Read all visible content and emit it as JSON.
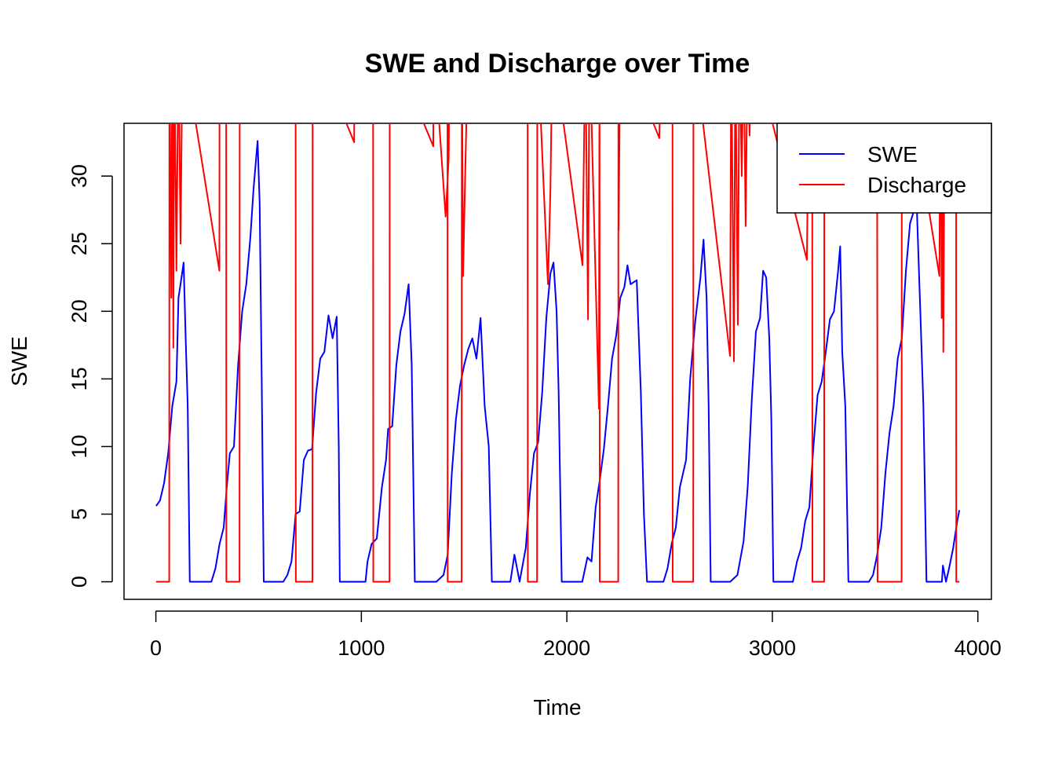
{
  "chart_data": {
    "type": "line",
    "title": "SWE and Discharge over Time",
    "x_label": "Time",
    "y_label": "SWE",
    "xlim": [
      -155,
      4066
    ],
    "ylim": [
      -1.3,
      33.9
    ],
    "xticks": [
      0,
      1000,
      2000,
      3000,
      4000
    ],
    "yticks": [
      0,
      5,
      10,
      15,
      20,
      25,
      30
    ],
    "legend": "topright",
    "series": [
      {
        "name": "SWE",
        "color": "#0000ff",
        "x": [
          1,
          20,
          40,
          60,
          80,
          100,
          110,
          120,
          135,
          145,
          155,
          165,
          270,
          290,
          310,
          330,
          345,
          360,
          380,
          400,
          420,
          440,
          460,
          475,
          495,
          505,
          515,
          525,
          620,
          640,
          660,
          680,
          700,
          720,
          740,
          760,
          780,
          800,
          820,
          840,
          860,
          880,
          890,
          895,
          1020,
          1030,
          1050,
          1075,
          1100,
          1120,
          1130,
          1150,
          1170,
          1190,
          1210,
          1230,
          1245,
          1260,
          1365,
          1400,
          1420,
          1440,
          1460,
          1480,
          1500,
          1520,
          1540,
          1560,
          1580,
          1600,
          1620,
          1635,
          1725,
          1745,
          1770,
          1800,
          1820,
          1840,
          1860,
          1880,
          1900,
          1920,
          1935,
          1950,
          1960,
          1975,
          2075,
          2100,
          2120,
          2140,
          2160,
          2180,
          2200,
          2220,
          2240,
          2260,
          2280,
          2295,
          2310,
          2340,
          2360,
          2375,
          2390,
          2470,
          2490,
          2510,
          2530,
          2550,
          2580,
          2600,
          2625,
          2650,
          2665,
          2680,
          2690,
          2700,
          2795,
          2830,
          2860,
          2880,
          2900,
          2920,
          2940,
          2955,
          2970,
          2985,
          2995,
          3005,
          3100,
          3120,
          3140,
          3160,
          3180,
          3200,
          3220,
          3240,
          3260,
          3280,
          3300,
          3320,
          3330,
          3340,
          3355,
          3370,
          3470,
          3490,
          3510,
          3530,
          3550,
          3570,
          3590,
          3610,
          3630,
          3650,
          3670,
          3690,
          3700,
          3720,
          3735,
          3750,
          3825,
          3830,
          3845,
          3860,
          3880,
          3900,
          3910
        ],
        "values": [
          5.6,
          6,
          7.3,
          9.5,
          13,
          14.8,
          21,
          22,
          23.6,
          18,
          13,
          0,
          0,
          1,
          2.8,
          4,
          7,
          9.5,
          10,
          16,
          20,
          22,
          25.5,
          29,
          32.6,
          28,
          15,
          0,
          0,
          0.5,
          1.5,
          5,
          5.2,
          9,
          9.7,
          9.8,
          14,
          16.5,
          17,
          19.7,
          18,
          19.6,
          10,
          0,
          0,
          1.5,
          2.8,
          3.2,
          7,
          9,
          11.3,
          11.5,
          16,
          18.5,
          19.8,
          22,
          16,
          0,
          0,
          0.5,
          2,
          8,
          12,
          14.5,
          16,
          17.2,
          18,
          16.5,
          19.5,
          13,
          10,
          0,
          0,
          2,
          0,
          2.5,
          6.5,
          9.5,
          10.3,
          14,
          19.5,
          22.8,
          23.6,
          20,
          14,
          0,
          0,
          1.8,
          1.5,
          5.5,
          7.5,
          9.8,
          13,
          16.5,
          18.2,
          21,
          21.8,
          23.4,
          22,
          22.3,
          14,
          5,
          0,
          0,
          1,
          2.8,
          4,
          7,
          9,
          15,
          19.3,
          22.5,
          25.3,
          21,
          13,
          0,
          0,
          0.5,
          3,
          7,
          13.5,
          18.5,
          19.5,
          23,
          22.5,
          18,
          12,
          0,
          0,
          1.5,
          2.5,
          4.5,
          5.5,
          10,
          13.8,
          14.8,
          17,
          19.4,
          20,
          23,
          24.8,
          17,
          13,
          0,
          0,
          0.5,
          2,
          4,
          8,
          11,
          13,
          16.5,
          18,
          23,
          26.5,
          27.5,
          29,
          20,
          13,
          0,
          0,
          1.2,
          0,
          1,
          2.5,
          4.5,
          5.3
        ]
      },
      {
        "name": "Discharge",
        "color": "#ff0000",
        "x": [
          1,
          65,
          66,
          75,
          80,
          85,
          90,
          100,
          110,
          120,
          130,
          309,
          310,
          342,
          343,
          407,
          408,
          680,
          681,
          762,
          763,
          965,
          966,
          1057,
          1058,
          1137,
          1138,
          1350,
          1351,
          1410,
          1425,
          1430,
          1419,
          1420,
          1488,
          1489,
          1495,
          1505,
          1520,
          1809,
          1810,
          1855,
          1856,
          1908,
          1920,
          1930,
          2076,
          2090,
          2103,
          2110,
          2156,
          2159,
          2160,
          2250,
          2251,
          2252,
          2260,
          2450,
          2460,
          2514,
          2515,
          2615,
          2616,
          2794,
          2800,
          2813,
          2820,
          2832,
          2840,
          2851,
          2860,
          2870,
          2880,
          2889,
          2900,
          3168,
          3180,
          3194,
          3195,
          3252,
          3253,
          3509,
          3511,
          3512,
          3629,
          3630,
          3813,
          3818,
          3824,
          3828,
          3832,
          3840,
          3894,
          3895,
          3910
        ],
        "values": [
          0,
          0,
          40,
          21,
          40,
          17.3,
          40,
          23,
          40,
          25,
          40,
          23,
          40,
          40,
          0,
          0,
          40,
          40,
          0,
          0,
          40,
          32.5,
          40,
          40,
          0,
          0,
          40,
          32.2,
          40,
          27,
          31.3,
          40,
          40,
          0,
          0,
          40,
          22.6,
          30,
          40,
          40,
          0,
          0,
          40,
          22,
          29,
          40,
          23.4,
          40,
          19.4,
          40,
          12.8,
          40,
          0,
          0,
          40,
          26,
          40,
          32.8,
          40,
          40,
          0,
          0,
          40,
          16.7,
          40,
          16.3,
          40,
          19,
          40,
          30,
          40,
          26.3,
          40,
          33,
          40,
          23.8,
          40,
          40,
          0,
          0,
          40,
          40,
          15.2,
          0,
          0,
          40,
          22.6,
          40,
          19.5,
          40,
          17,
          40,
          40,
          0,
          0
        ]
      }
    ]
  }
}
